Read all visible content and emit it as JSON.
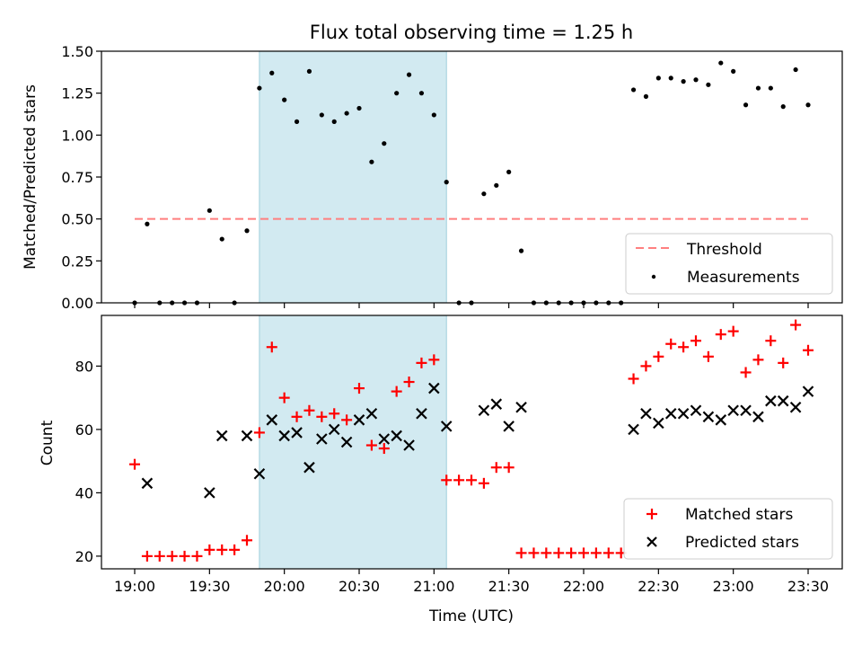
{
  "title": "Flux total observing time = 1.25 h",
  "chart_data": [
    {
      "type": "scatter",
      "ylabel": "Matched/Predicted stars",
      "ylim": [
        0,
        1.5
      ],
      "yticks": [
        "0.00",
        "0.25",
        "0.50",
        "0.75",
        "1.00",
        "1.25",
        "1.50"
      ],
      "highlight_span": {
        "start": "19:50",
        "end": "21:05",
        "color": "#add8e6"
      },
      "threshold": {
        "name": "Threshold",
        "value": 0.5,
        "color": "#ff7f7f"
      },
      "legend": {
        "position": "lower-right",
        "entries": [
          "Threshold",
          "Measurements"
        ]
      },
      "series": [
        {
          "name": "Measurements",
          "color": "#000000",
          "points": [
            [
              "19:00",
              0.0
            ],
            [
              "19:05",
              0.47
            ],
            [
              "19:10",
              0.0
            ],
            [
              "19:15",
              0.0
            ],
            [
              "19:20",
              0.0
            ],
            [
              "19:25",
              0.0
            ],
            [
              "19:30",
              0.55
            ],
            [
              "19:35",
              0.38
            ],
            [
              "19:40",
              0.0
            ],
            [
              "19:45",
              0.43
            ],
            [
              "19:50",
              1.28
            ],
            [
              "19:55",
              1.37
            ],
            [
              "20:00",
              1.21
            ],
            [
              "20:05",
              1.08
            ],
            [
              "20:10",
              1.38
            ],
            [
              "20:15",
              1.12
            ],
            [
              "20:20",
              1.08
            ],
            [
              "20:25",
              1.13
            ],
            [
              "20:30",
              1.16
            ],
            [
              "20:35",
              0.84
            ],
            [
              "20:40",
              0.95
            ],
            [
              "20:45",
              1.25
            ],
            [
              "20:50",
              1.36
            ],
            [
              "20:55",
              1.25
            ],
            [
              "21:00",
              1.12
            ],
            [
              "21:05",
              0.72
            ],
            [
              "21:10",
              0.0
            ],
            [
              "21:15",
              0.0
            ],
            [
              "21:20",
              0.65
            ],
            [
              "21:25",
              0.7
            ],
            [
              "21:30",
              0.78
            ],
            [
              "21:35",
              0.31
            ],
            [
              "21:40",
              0.0
            ],
            [
              "21:45",
              0.0
            ],
            [
              "21:50",
              0.0
            ],
            [
              "21:55",
              0.0
            ],
            [
              "22:00",
              0.0
            ],
            [
              "22:05",
              0.0
            ],
            [
              "22:10",
              0.0
            ],
            [
              "22:15",
              0.0
            ],
            [
              "22:20",
              1.27
            ],
            [
              "22:25",
              1.23
            ],
            [
              "22:30",
              1.34
            ],
            [
              "22:35",
              1.34
            ],
            [
              "22:40",
              1.32
            ],
            [
              "22:45",
              1.33
            ],
            [
              "22:50",
              1.3
            ],
            [
              "22:55",
              1.43
            ],
            [
              "23:00",
              1.38
            ],
            [
              "23:05",
              1.18
            ],
            [
              "23:10",
              1.28
            ],
            [
              "23:15",
              1.28
            ],
            [
              "23:20",
              1.17
            ],
            [
              "23:25",
              1.39
            ],
            [
              "23:30",
              1.18
            ]
          ]
        }
      ]
    },
    {
      "type": "scatter",
      "xlabel": "Time (UTC)",
      "ylabel": "Count",
      "ylim": [
        16,
        96
      ],
      "yticks": [
        "20",
        "40",
        "60",
        "80"
      ],
      "xticks": [
        "19:00",
        "19:30",
        "20:00",
        "20:30",
        "21:00",
        "21:30",
        "22:00",
        "22:30",
        "23:00",
        "23:30"
      ],
      "highlight_span": {
        "start": "19:50",
        "end": "21:05",
        "color": "#add8e6"
      },
      "legend": {
        "position": "lower-right",
        "entries": [
          "Matched stars",
          "Predicted stars"
        ]
      },
      "series": [
        {
          "name": "Matched stars",
          "marker": "plus",
          "color": "#ff0000",
          "points": [
            [
              "19:00",
              49
            ],
            [
              "19:05",
              20
            ],
            [
              "19:10",
              20
            ],
            [
              "19:15",
              20
            ],
            [
              "19:20",
              20
            ],
            [
              "19:25",
              20
            ],
            [
              "19:30",
              22
            ],
            [
              "19:35",
              22
            ],
            [
              "19:40",
              22
            ],
            [
              "19:45",
              25
            ],
            [
              "19:50",
              59
            ],
            [
              "19:55",
              86
            ],
            [
              "20:00",
              70
            ],
            [
              "20:05",
              64
            ],
            [
              "20:10",
              66
            ],
            [
              "20:15",
              64
            ],
            [
              "20:20",
              65
            ],
            [
              "20:25",
              63
            ],
            [
              "20:30",
              73
            ],
            [
              "20:35",
              55
            ],
            [
              "20:40",
              54
            ],
            [
              "20:45",
              72
            ],
            [
              "20:50",
              75
            ],
            [
              "20:55",
              81
            ],
            [
              "21:00",
              82
            ],
            [
              "21:05",
              44
            ],
            [
              "21:10",
              44
            ],
            [
              "21:15",
              44
            ],
            [
              "21:20",
              43
            ],
            [
              "21:25",
              48
            ],
            [
              "21:30",
              48
            ],
            [
              "21:35",
              21
            ],
            [
              "21:40",
              21
            ],
            [
              "21:45",
              21
            ],
            [
              "21:50",
              21
            ],
            [
              "21:55",
              21
            ],
            [
              "22:00",
              21
            ],
            [
              "22:05",
              21
            ],
            [
              "22:10",
              21
            ],
            [
              "22:15",
              21
            ],
            [
              "22:20",
              76
            ],
            [
              "22:25",
              80
            ],
            [
              "22:30",
              83
            ],
            [
              "22:35",
              87
            ],
            [
              "22:40",
              86
            ],
            [
              "22:45",
              88
            ],
            [
              "22:50",
              83
            ],
            [
              "22:55",
              90
            ],
            [
              "23:00",
              91
            ],
            [
              "23:05",
              78
            ],
            [
              "23:10",
              82
            ],
            [
              "23:15",
              88
            ],
            [
              "23:20",
              81
            ],
            [
              "23:25",
              93
            ],
            [
              "23:30",
              85
            ]
          ]
        },
        {
          "name": "Predicted stars",
          "marker": "x",
          "color": "#000000",
          "points": [
            [
              "19:05",
              43
            ],
            [
              "19:30",
              40
            ],
            [
              "19:35",
              58
            ],
            [
              "19:45",
              58
            ],
            [
              "19:50",
              46
            ],
            [
              "19:55",
              63
            ],
            [
              "20:00",
              58
            ],
            [
              "20:05",
              59
            ],
            [
              "20:10",
              48
            ],
            [
              "20:15",
              57
            ],
            [
              "20:20",
              60
            ],
            [
              "20:25",
              56
            ],
            [
              "20:30",
              63
            ],
            [
              "20:35",
              65
            ],
            [
              "20:40",
              57
            ],
            [
              "20:45",
              58
            ],
            [
              "20:50",
              55
            ],
            [
              "20:55",
              65
            ],
            [
              "21:00",
              73
            ],
            [
              "21:05",
              61
            ],
            [
              "21:20",
              66
            ],
            [
              "21:25",
              68
            ],
            [
              "21:30",
              61
            ],
            [
              "21:35",
              67
            ],
            [
              "22:20",
              60
            ],
            [
              "22:25",
              65
            ],
            [
              "22:30",
              62
            ],
            [
              "22:35",
              65
            ],
            [
              "22:40",
              65
            ],
            [
              "22:45",
              66
            ],
            [
              "22:50",
              64
            ],
            [
              "22:55",
              63
            ],
            [
              "23:00",
              66
            ],
            [
              "23:05",
              66
            ],
            [
              "23:10",
              64
            ],
            [
              "23:15",
              69
            ],
            [
              "23:20",
              69
            ],
            [
              "23:25",
              67
            ],
            [
              "23:30",
              72
            ]
          ]
        }
      ]
    }
  ]
}
